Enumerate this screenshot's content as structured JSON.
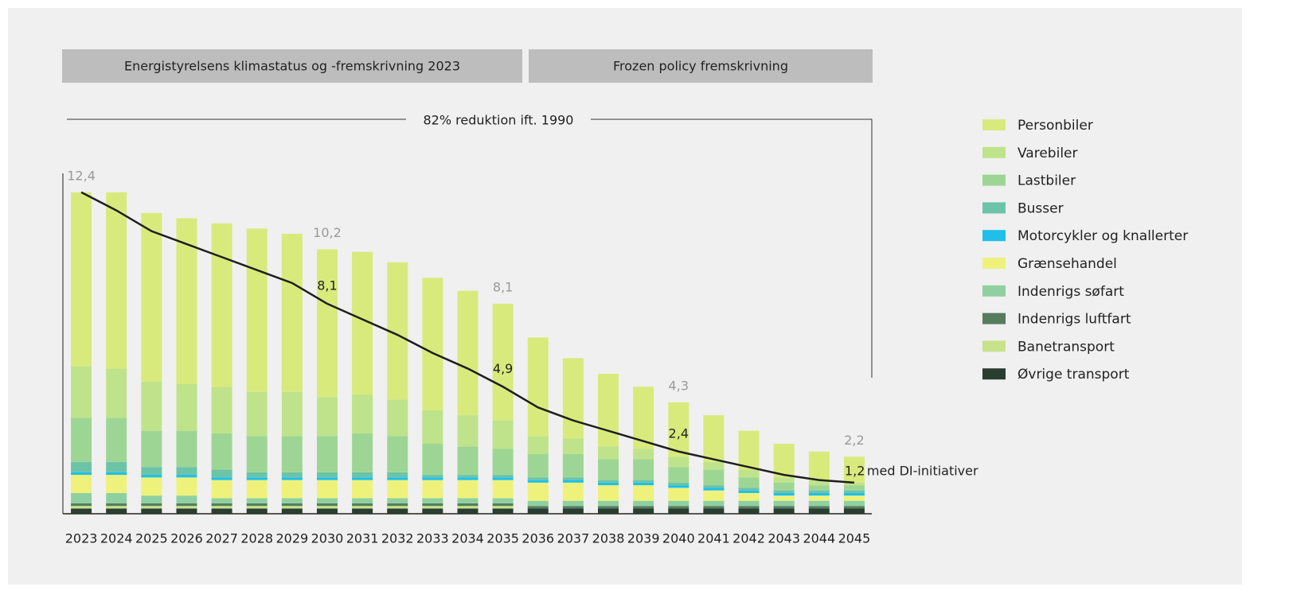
{
  "chart_data": {
    "type": "stacked_bar_line",
    "headers": [
      "Energistyrelsens klimastatus og -fremskrivning 2023",
      "Frozen policy fremskrivning"
    ],
    "bracket_label": "82% reduktion ift. 1990",
    "categories": [
      "2023",
      "2024",
      "2025",
      "2026",
      "2027",
      "2028",
      "2029",
      "2030",
      "2031",
      "2032",
      "2033",
      "2034",
      "2035",
      "2036",
      "2037",
      "2038",
      "2039",
      "2040",
      "2041",
      "2042",
      "2043",
      "2044",
      "2045"
    ],
    "series": [
      {
        "name": "Øvrige transport",
        "color": "#2a3d31",
        "values": [
          0.2,
          0.2,
          0.2,
          0.2,
          0.2,
          0.2,
          0.2,
          0.2,
          0.2,
          0.2,
          0.2,
          0.2,
          0.2,
          0.2,
          0.2,
          0.2,
          0.2,
          0.2,
          0.2,
          0.2,
          0.2,
          0.2,
          0.2
        ]
      },
      {
        "name": "Banetransport",
        "color": "#c7e28a",
        "values": [
          0.1,
          0.1,
          0.1,
          0.1,
          0.1,
          0.1,
          0.1,
          0.1,
          0.1,
          0.1,
          0.1,
          0.1,
          0.1,
          0,
          0,
          0,
          0,
          0,
          0,
          0,
          0,
          0,
          0
        ]
      },
      {
        "name": "Indenrigs luftfart",
        "color": "#567d5e",
        "values": [
          0.1,
          0.1,
          0.1,
          0.1,
          0.1,
          0.1,
          0.1,
          0.1,
          0.1,
          0.1,
          0.1,
          0.1,
          0.1,
          0.1,
          0.1,
          0.1,
          0.1,
          0.1,
          0.1,
          0.1,
          0.1,
          0.1,
          0.1
        ]
      },
      {
        "name": "Indenrigs søfart",
        "color": "#8fd0a0",
        "values": [
          0.4,
          0.4,
          0.3,
          0.3,
          0.2,
          0.2,
          0.2,
          0.2,
          0.2,
          0.2,
          0.2,
          0.2,
          0.2,
          0.2,
          0.2,
          0.2,
          0.2,
          0.2,
          0.2,
          0.2,
          0.2,
          0.2,
          0.2
        ]
      },
      {
        "name": "Grænsehandel",
        "color": "#eef27a",
        "values": [
          0.7,
          0.7,
          0.7,
          0.7,
          0.7,
          0.7,
          0.7,
          0.7,
          0.7,
          0.7,
          0.7,
          0.7,
          0.7,
          0.7,
          0.7,
          0.6,
          0.6,
          0.5,
          0.4,
          0.3,
          0.2,
          0.2,
          0.2
        ]
      },
      {
        "name": "Motorcykler og knallerter",
        "color": "#1fbfea",
        "values": [
          0.1,
          0.1,
          0.1,
          0.1,
          0.1,
          0.1,
          0.1,
          0.1,
          0.1,
          0.1,
          0.1,
          0.1,
          0.1,
          0.1,
          0.1,
          0.1,
          0.1,
          0.1,
          0.1,
          0.1,
          0.1,
          0.1,
          0.1
        ]
      },
      {
        "name": "Busser",
        "color": "#6cc4a8",
        "values": [
          0.4,
          0.4,
          0.3,
          0.3,
          0.3,
          0.2,
          0.2,
          0.2,
          0.2,
          0.2,
          0.1,
          0.1,
          0.1,
          0.1,
          0.1,
          0.1,
          0.1,
          0.1,
          0.1,
          0.1,
          0.1,
          0.1,
          0.1
        ]
      },
      {
        "name": "Lastbiler",
        "color": "#9dd694",
        "values": [
          1.7,
          1.7,
          1.4,
          1.4,
          1.4,
          1.4,
          1.4,
          1.4,
          1.5,
          1.4,
          1.2,
          1.1,
          1.0,
          0.9,
          0.9,
          0.8,
          0.8,
          0.6,
          0.6,
          0.4,
          0.3,
          0.2,
          0.2
        ]
      },
      {
        "name": "Varebiler",
        "color": "#bfe38a",
        "values": [
          2.0,
          1.9,
          1.9,
          1.8,
          1.8,
          1.7,
          1.7,
          1.5,
          1.5,
          1.4,
          1.3,
          1.2,
          1.1,
          0.7,
          0.6,
          0.5,
          0.4,
          0.4,
          0.3,
          0.3,
          0.2,
          0.2,
          0.1
        ]
      },
      {
        "name": "Personbiler",
        "color": "#d9ea7c",
        "values": [
          6.7,
          6.8,
          6.5,
          6.4,
          6.3,
          6.3,
          6.1,
          5.7,
          5.5,
          5.3,
          5.1,
          4.8,
          4.5,
          3.8,
          3.1,
          2.8,
          2.4,
          2.1,
          1.8,
          1.5,
          1.3,
          1.1,
          1.0
        ]
      }
    ],
    "legend_order": [
      9,
      8,
      7,
      6,
      5,
      4,
      3,
      2,
      1,
      0
    ],
    "total_labels": [
      {
        "index": 0,
        "value": 12.4,
        "label": "12,4"
      },
      {
        "index": 7,
        "value": 10.2,
        "label": "10,2"
      },
      {
        "index": 12,
        "value": 8.1,
        "label": "8,1"
      },
      {
        "index": 17,
        "value": 4.3,
        "label": "4,3"
      },
      {
        "index": 22,
        "value": 2.2,
        "label": "2,2"
      }
    ],
    "line": {
      "color": "#1e1e1e",
      "values": [
        12.4,
        11.7,
        10.9,
        10.4,
        9.9,
        9.4,
        8.9,
        8.1,
        7.5,
        6.9,
        6.2,
        5.6,
        4.9,
        4.1,
        3.6,
        3.2,
        2.8,
        2.4,
        2.1,
        1.8,
        1.5,
        1.3,
        1.2
      ]
    },
    "line_labels": [
      {
        "index": 7,
        "value": 8.1,
        "label": "8,1"
      },
      {
        "index": 12,
        "value": 4.9,
        "label": "4,9"
      },
      {
        "index": 17,
        "value": 2.4,
        "label": "2,4"
      },
      {
        "index": 22,
        "value": 1.2,
        "label": "1,2"
      }
    ],
    "line_annotation": "med DI-initiativer"
  }
}
